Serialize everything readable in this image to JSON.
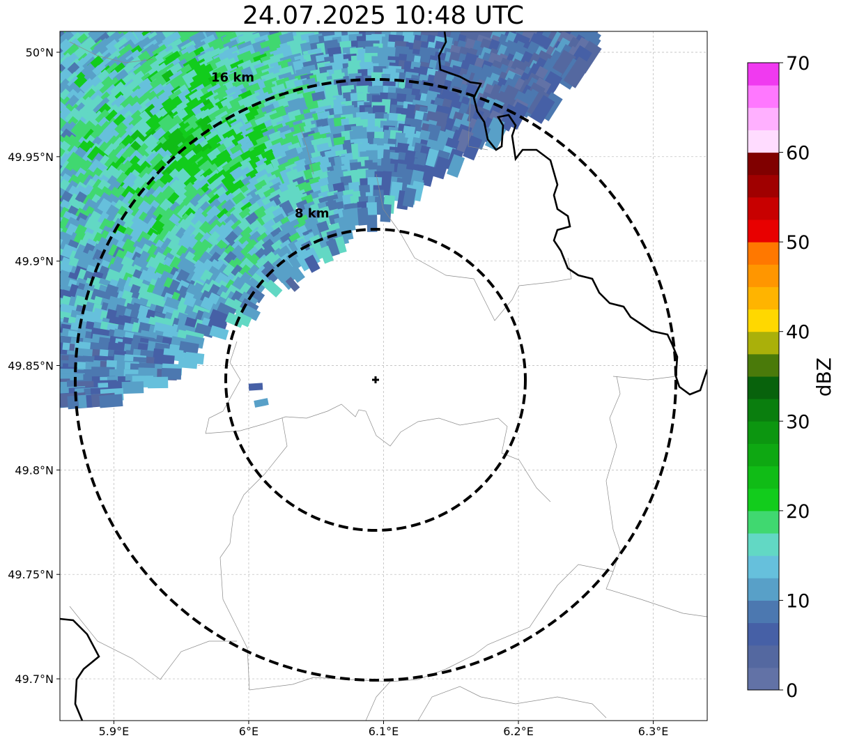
{
  "title": "24.07.2025 10:48 UTC",
  "map": {
    "lon_range": [
      5.86,
      6.34
    ],
    "lat_range": [
      49.68,
      50.01
    ],
    "radar_site": {
      "lon": 6.095,
      "lat": 49.843
    },
    "x_ticks": [
      {
        "value": 5.9,
        "label": "5.9°E"
      },
      {
        "value": 6.0,
        "label": "6°E"
      },
      {
        "value": 6.1,
        "label": "6.1°E"
      },
      {
        "value": 6.2,
        "label": "6.2°E"
      },
      {
        "value": 6.3,
        "label": "6.3°E"
      }
    ],
    "y_ticks": [
      {
        "value": 50.0,
        "label": "50°N"
      },
      {
        "value": 49.95,
        "label": "49.95°N"
      },
      {
        "value": 49.9,
        "label": "49.9°N"
      },
      {
        "value": 49.85,
        "label": "49.85°N"
      },
      {
        "value": 49.8,
        "label": "49.8°N"
      },
      {
        "value": 49.75,
        "label": "49.75°N"
      },
      {
        "value": 49.7,
        "label": "49.7°N"
      }
    ],
    "range_rings": [
      {
        "radius_km": 8,
        "label": "8 km"
      },
      {
        "radius_km": 16,
        "label": "16 km"
      }
    ],
    "grid": true
  },
  "colorbar": {
    "label": "dBZ",
    "min": 0,
    "max": 70,
    "step": 2.5,
    "ticks": [
      "0",
      "10",
      "20",
      "30",
      "40",
      "50",
      "60",
      "70"
    ],
    "colors": [
      "#6272a6",
      "#5468a0",
      "#4660a6",
      "#4c78b0",
      "#58a0c8",
      "#66c0dc",
      "#62d8c4",
      "#40d870",
      "#12cc1c",
      "#10bc16",
      "#0ea812",
      "#0c9610",
      "#0a7e0e",
      "#08620c",
      "#4a7a0a",
      "#aab00a",
      "#ffd800",
      "#ffb400",
      "#ff9600",
      "#ff7800",
      "#e80000",
      "#c80000",
      "#a00000",
      "#800000",
      "#ffdcff",
      "#ffb0ff",
      "#ff78ff",
      "#f03af0"
    ]
  }
}
